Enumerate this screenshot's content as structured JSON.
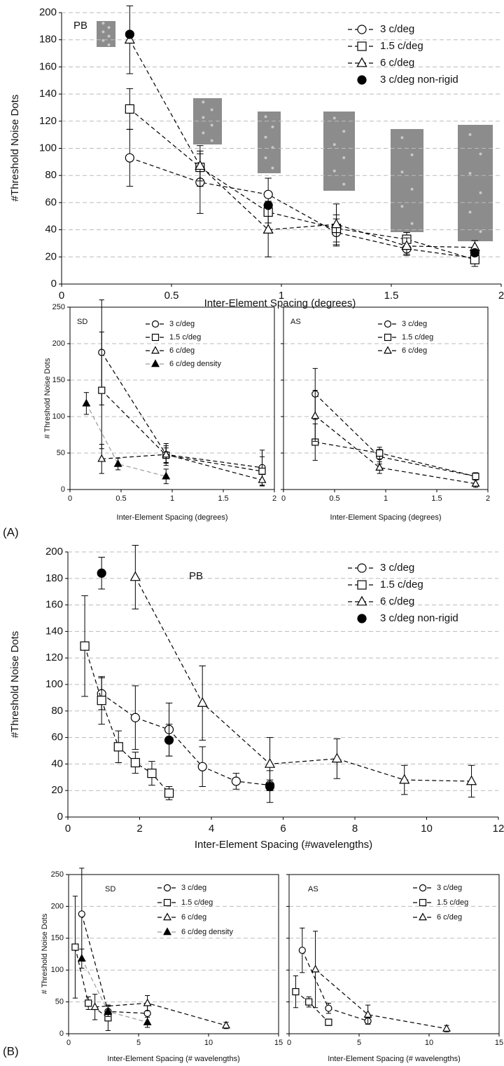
{
  "panel_labels": [
    "(A)",
    "(B)"
  ],
  "chart_data": [
    {
      "type": "line",
      "annotation": "PB",
      "x_label": "Inter-Element Spacing (degrees)",
      "y_label": "#Threshold Noise Dots",
      "xlim": [
        0,
        2
      ],
      "xticks": [
        0,
        0.5,
        1,
        1.5,
        2
      ],
      "ylim": [
        0,
        200
      ],
      "yticks": [
        0,
        20,
        40,
        60,
        80,
        100,
        120,
        140,
        160,
        180,
        200
      ],
      "grid": true,
      "show_ytick_labels": true,
      "series": [
        {
          "name": "3 c/deg",
          "color": "#000000",
          "marker": "circle",
          "marker_fill": "#ffffff",
          "x": [
            0.31,
            0.63,
            0.94,
            1.25,
            1.57,
            1.88
          ],
          "values": [
            93,
            75,
            66,
            38,
            26,
            19
          ],
          "errors": [
            21,
            23,
            12,
            10,
            5,
            4
          ]
        },
        {
          "name": "1.5 c/deg",
          "color": "#000000",
          "marker": "square",
          "marker_fill": "#ffffff",
          "x": [
            0.31,
            0.63,
            0.94,
            1.25,
            1.57,
            1.88
          ],
          "values": [
            129,
            86,
            53,
            41,
            33,
            18
          ],
          "errors": [
            15,
            10,
            8,
            10,
            5,
            5
          ]
        },
        {
          "name": "6 c/deg",
          "color": "#000000",
          "marker": "triangle",
          "marker_fill": "#ffffff",
          "x": [
            0.31,
            0.63,
            0.94,
            1.25,
            1.57,
            1.88
          ],
          "values": [
            180,
            87,
            40,
            44,
            28,
            27
          ],
          "errors": [
            25,
            15,
            20,
            15,
            6,
            5
          ]
        },
        {
          "name": "3 c/deg non-rigid",
          "color": "#000000",
          "marker": "circle",
          "marker_fill": "#000000",
          "line": false,
          "x": [
            0.31,
            0.94,
            1.88
          ],
          "values": [
            184,
            58,
            23
          ]
        }
      ]
    },
    {
      "type": "line",
      "annotation": "SD",
      "x_label": "Inter-Element Spacing (degrees)",
      "y_label": "# Threshold Noise Dots",
      "xlim": [
        0,
        2
      ],
      "xticks": [
        0,
        0.5,
        1,
        1.5,
        2
      ],
      "ylim": [
        0,
        250
      ],
      "yticks": [
        0,
        50,
        100,
        150,
        200,
        250
      ],
      "grid": true,
      "show_ytick_labels": true,
      "series": [
        {
          "name": "3 c/deg",
          "color": "#000000",
          "marker": "circle",
          "marker_fill": "#ffffff",
          "x": [
            0.31,
            0.94,
            1.88
          ],
          "values": [
            188,
            48,
            30
          ],
          "errors": [
            72,
            12,
            24
          ]
        },
        {
          "name": "1.5 c/deg",
          "color": "#000000",
          "marker": "square",
          "marker_fill": "#ffffff",
          "x": [
            0.31,
            0.94,
            1.88
          ],
          "values": [
            136,
            47,
            25
          ],
          "errors": [
            80,
            10,
            20
          ]
        },
        {
          "name": "6 c/deg",
          "color": "#000000",
          "marker": "triangle",
          "marker_fill": "#ffffff",
          "x": [
            0.31,
            0.94,
            1.88
          ],
          "values": [
            42,
            48,
            13
          ],
          "errors": [
            20,
            15,
            8
          ]
        },
        {
          "name": "6 c/deg density",
          "color": "#999999",
          "marker": "triangle",
          "marker_fill": "#000000",
          "x": [
            0.16,
            0.47,
            0.94
          ],
          "values": [
            118,
            35,
            18
          ],
          "errors": [
            15,
            8,
            10
          ]
        }
      ]
    },
    {
      "type": "line",
      "annotation": "AS",
      "x_label": "Inter-Element Spacing (degrees)",
      "xlim": [
        0,
        2
      ],
      "xticks": [
        0,
        0.5,
        1,
        1.5,
        2
      ],
      "ylim": [
        0,
        250
      ],
      "yticks": [
        0,
        50,
        100,
        150,
        200,
        250
      ],
      "grid": true,
      "show_ytick_labels": false,
      "series": [
        {
          "name": "3 c/deg",
          "color": "#000000",
          "marker": "circle",
          "marker_fill": "#ffffff",
          "x": [
            0.31,
            0.94,
            1.88
          ],
          "values": [
            131,
            45,
            18
          ],
          "errors": [
            35,
            10,
            5
          ]
        },
        {
          "name": "1.5 c/deg",
          "color": "#000000",
          "marker": "square",
          "marker_fill": "#ffffff",
          "x": [
            0.31,
            0.94,
            1.88
          ],
          "values": [
            65,
            50,
            18
          ],
          "errors": [
            25,
            8,
            5
          ]
        },
        {
          "name": "6 c/deg",
          "color": "#000000",
          "marker": "triangle",
          "marker_fill": "#ffffff",
          "x": [
            0.31,
            0.94,
            1.88
          ],
          "values": [
            101,
            30,
            8
          ],
          "errors": [
            35,
            8,
            5
          ]
        }
      ]
    },
    {
      "type": "line",
      "annotation": "PB",
      "x_label": "Inter-Element Spacing (#wavelengths)",
      "y_label": "#Threshold Noise Dots",
      "xlim": [
        0,
        12
      ],
      "xticks": [
        0,
        2,
        4,
        6,
        8,
        10,
        12
      ],
      "ylim": [
        0,
        200
      ],
      "yticks": [
        0,
        20,
        40,
        60,
        80,
        100,
        120,
        140,
        160,
        180,
        200
      ],
      "grid": true,
      "show_ytick_labels": true,
      "series": [
        {
          "name": "3 c/deg",
          "color": "#000000",
          "marker": "circle",
          "marker_fill": "#ffffff",
          "x": [
            0.94,
            1.88,
            2.82,
            3.75,
            4.69,
            5.63
          ],
          "values": [
            93,
            75,
            66,
            38,
            27,
            24
          ],
          "errors": [
            12,
            24,
            20,
            15,
            6,
            4
          ]
        },
        {
          "name": "1.5 c/deg",
          "color": "#000000",
          "marker": "square",
          "marker_fill": "#ffffff",
          "x": [
            0.47,
            0.94,
            1.41,
            1.88,
            2.34,
            2.82
          ],
          "values": [
            129,
            88,
            53,
            41,
            33,
            18
          ],
          "errors": [
            38,
            18,
            12,
            8,
            9,
            5
          ]
        },
        {
          "name": "6 c/deg",
          "color": "#000000",
          "marker": "triangle",
          "marker_fill": "#ffffff",
          "x": [
            1.88,
            3.75,
            5.63,
            7.5,
            9.38,
            11.25
          ],
          "values": [
            181,
            86,
            40,
            44,
            28,
            27
          ],
          "errors": [
            24,
            28,
            20,
            15,
            11,
            12
          ]
        },
        {
          "name": "3 c/deg non-rigid",
          "color": "#000000",
          "marker": "circle",
          "marker_fill": "#000000",
          "line": false,
          "x": [
            0.94,
            2.82,
            5.63
          ],
          "values": [
            184,
            58,
            23
          ],
          "errors": [
            12,
            12,
            12
          ]
        }
      ]
    },
    {
      "type": "line",
      "annotation": "SD",
      "x_label": "Inter-Element Spacing (# wavelengths)",
      "y_label": "# Threshold Noise Dots",
      "xlim": [
        0,
        15
      ],
      "xticks": [
        0,
        5,
        10,
        15
      ],
      "ylim": [
        0,
        250
      ],
      "yticks": [
        0,
        50,
        100,
        150,
        200,
        250
      ],
      "grid": true,
      "show_ytick_labels": true,
      "series": [
        {
          "name": "3 c/deg",
          "color": "#000000",
          "marker": "circle",
          "marker_fill": "#ffffff",
          "x": [
            0.94,
            2.82,
            5.63
          ],
          "values": [
            188,
            35,
            32
          ],
          "errors": [
            72,
            10,
            15
          ]
        },
        {
          "name": "1.5 c/deg",
          "color": "#000000",
          "marker": "square",
          "marker_fill": "#ffffff",
          "x": [
            0.47,
            1.41,
            2.82
          ],
          "values": [
            136,
            48,
            25
          ],
          "errors": [
            80,
            10,
            20
          ]
        },
        {
          "name": "6 c/deg",
          "color": "#000000",
          "marker": "triangle",
          "marker_fill": "#ffffff",
          "x": [
            1.88,
            5.63,
            11.25
          ],
          "values": [
            42,
            48,
            13
          ],
          "errors": [
            20,
            12,
            5
          ]
        },
        {
          "name": "6 c/deg density",
          "color": "#999999",
          "marker": "triangle",
          "marker_fill": "#000000",
          "x": [
            0.94,
            2.82,
            5.63
          ],
          "values": [
            118,
            35,
            18
          ],
          "errors": [
            15,
            8,
            8
          ]
        }
      ]
    },
    {
      "type": "line",
      "annotation": "AS",
      "x_label": "Inter-Element Spacing (# wavelengths)",
      "xlim": [
        0,
        15
      ],
      "xticks": [
        0,
        5,
        10,
        15
      ],
      "ylim": [
        0,
        250
      ],
      "yticks": [
        0,
        50,
        100,
        150,
        200,
        250
      ],
      "grid": true,
      "show_ytick_labels": false,
      "series": [
        {
          "name": "3 c/deg",
          "color": "#000000",
          "marker": "circle",
          "marker_fill": "#ffffff",
          "x": [
            0.94,
            2.82,
            5.63
          ],
          "values": [
            131,
            40,
            20
          ],
          "errors": [
            35,
            8,
            5
          ]
        },
        {
          "name": "1.5 c/deg",
          "color": "#000000",
          "marker": "square",
          "marker_fill": "#ffffff",
          "x": [
            0.47,
            1.41,
            2.82
          ],
          "values": [
            66,
            50,
            18
          ],
          "errors": [
            25,
            8,
            5
          ]
        },
        {
          "name": "6 c/deg",
          "color": "#000000",
          "marker": "triangle",
          "marker_fill": "#ffffff",
          "x": [
            1.88,
            5.63,
            11.25
          ],
          "values": [
            101,
            30,
            8
          ],
          "errors": [
            60,
            15,
            5
          ]
        }
      ]
    }
  ]
}
